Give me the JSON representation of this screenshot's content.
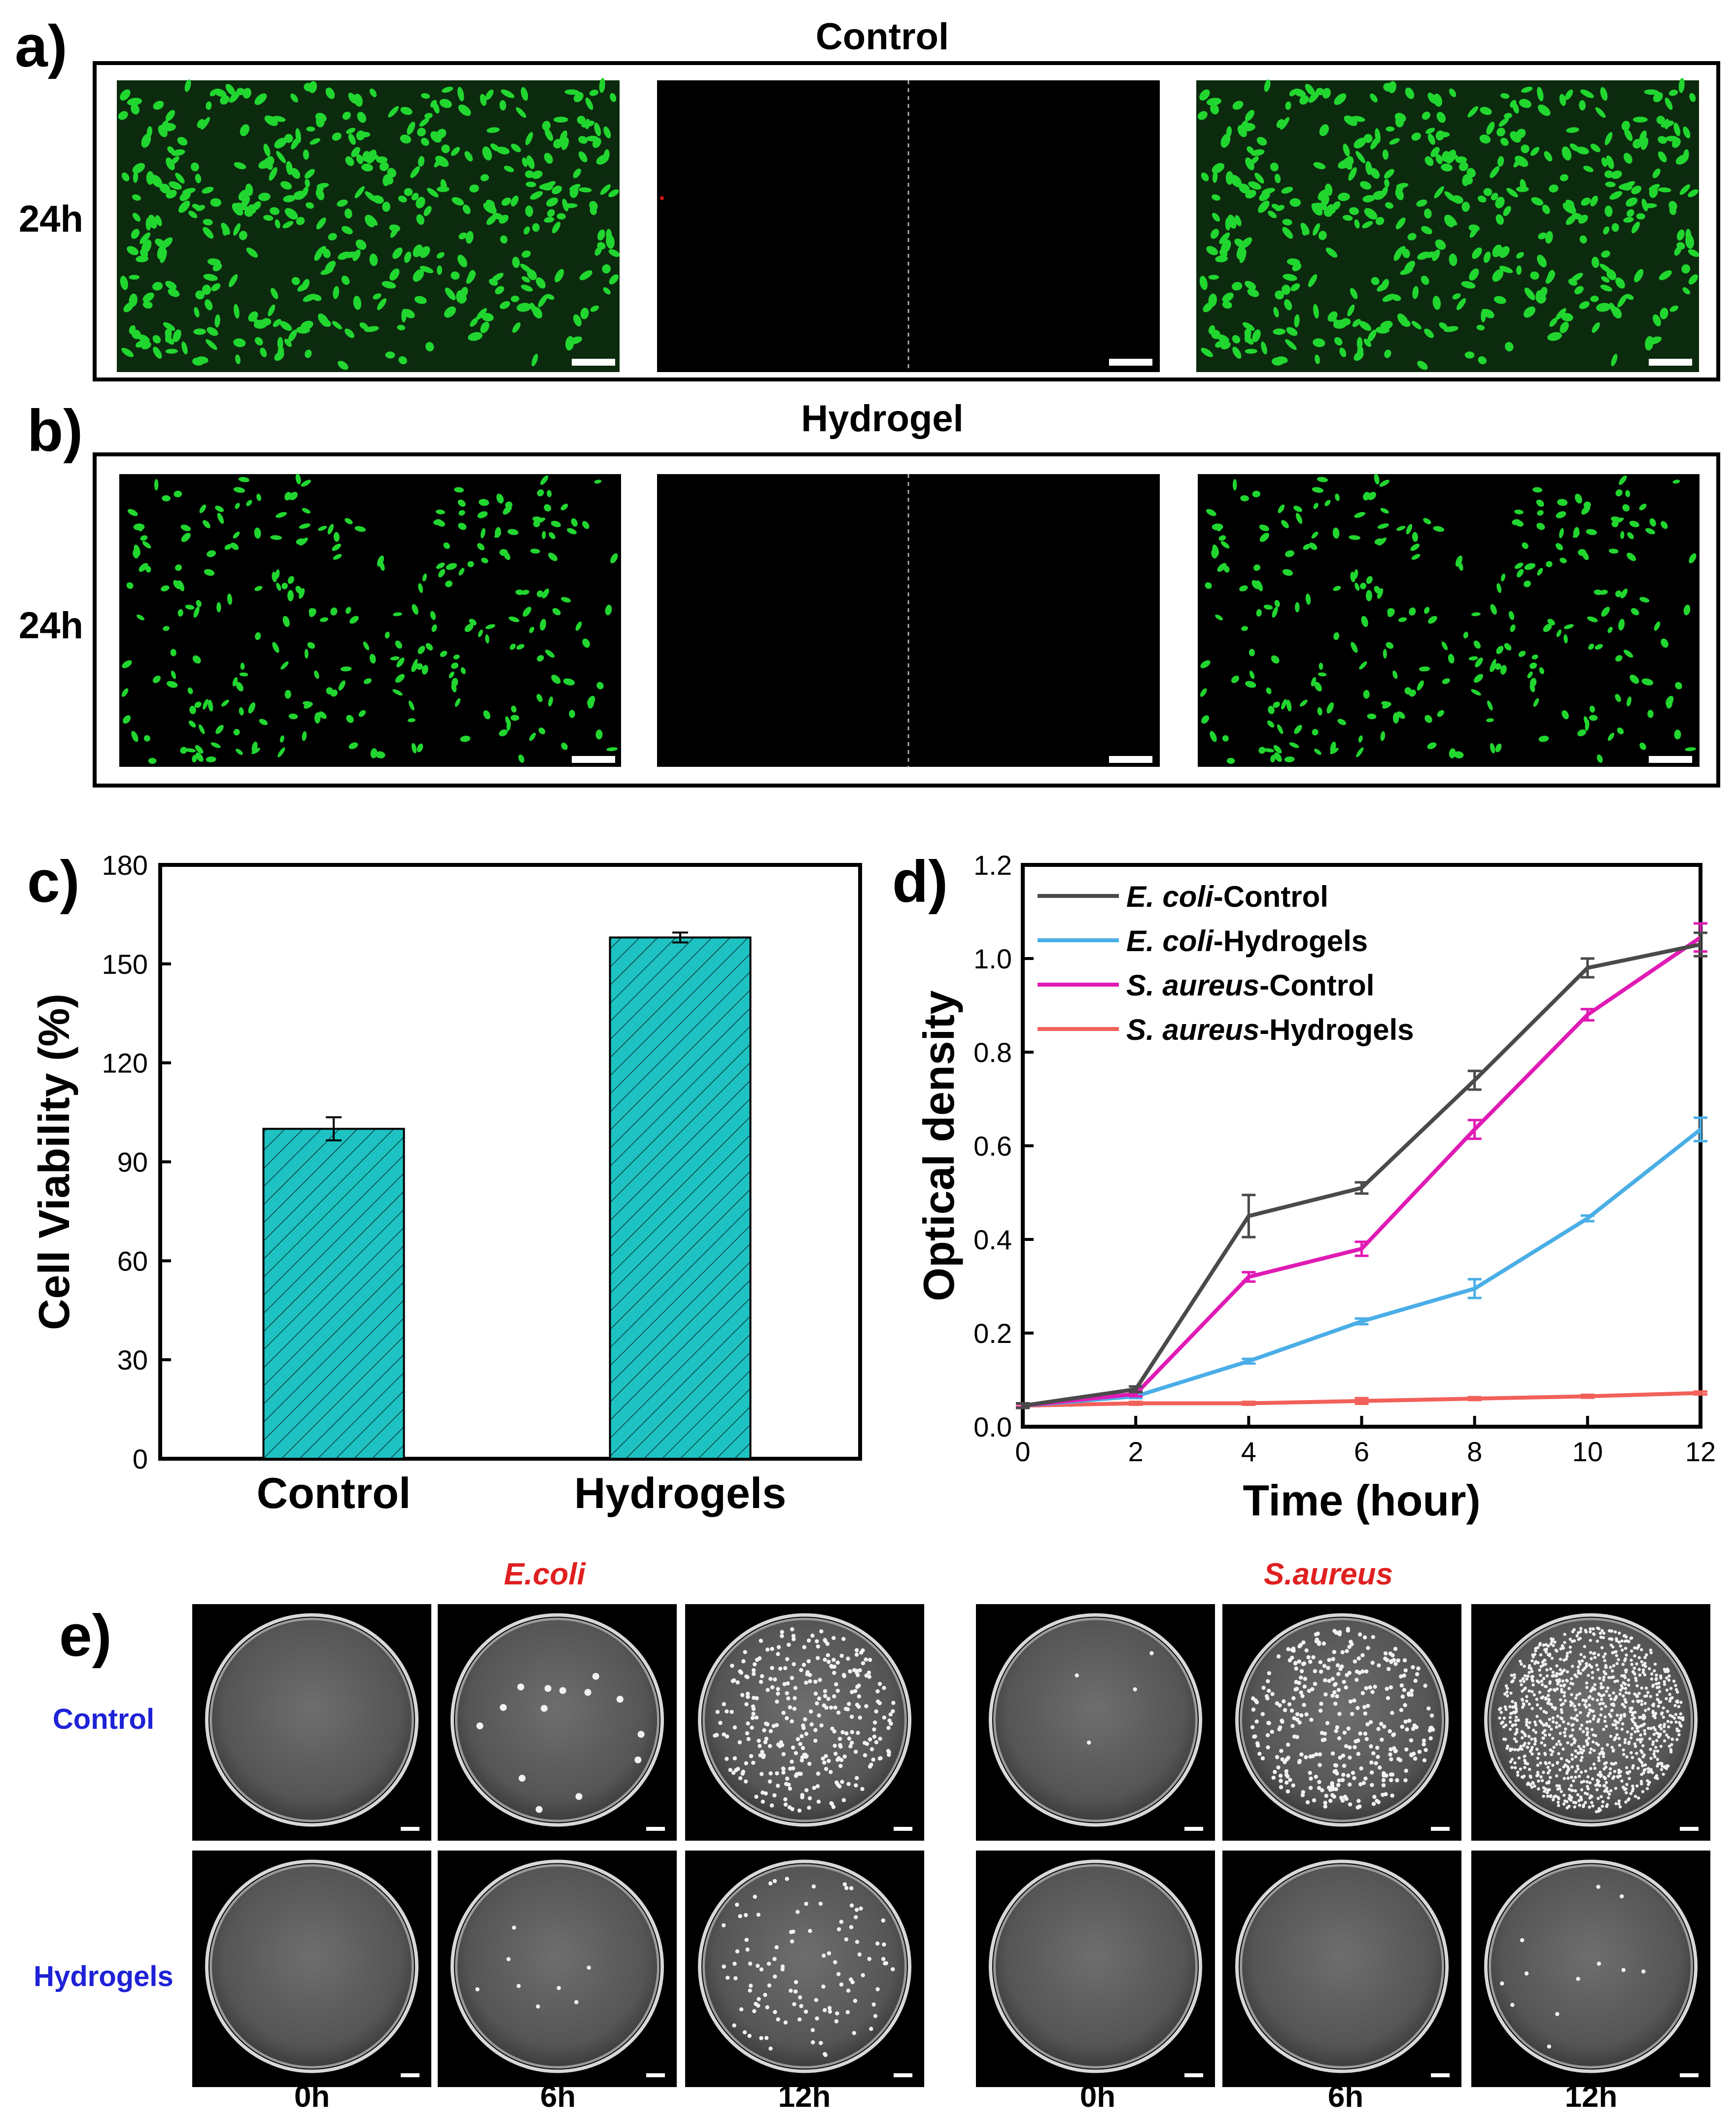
{
  "panel_labels": {
    "a": "a)",
    "b": "b)",
    "c": "c)",
    "d": "d)",
    "e": "e)"
  },
  "panel_a": {
    "title": "Control",
    "row_label": "24h"
  },
  "panel_b": {
    "title": "Hydrogel",
    "row_label": "24h"
  },
  "panel_e": {
    "group_titles": [
      "E.coli",
      "S.aureus"
    ],
    "row_labels": [
      "Control",
      "Hydrogels"
    ],
    "time_labels": [
      "0h",
      "6h",
      "12h"
    ],
    "title_color": "#e02020",
    "row_label_color": "#1e22d6"
  },
  "colors": {
    "bar_fill": "#1fc2c2",
    "ecoli_control": "#4a4a4a",
    "ecoli_hydrogels": "#4aaee6",
    "saureus_control": "#e01ab4",
    "saureus_hydrogels": "#f2605a",
    "cell_green": "#22d630"
  },
  "chart_data": [
    {
      "type": "bar",
      "categories": [
        "Control",
        "Hydrogels"
      ],
      "values": [
        100,
        158
      ],
      "errors": [
        3.5,
        1.5
      ],
      "ylabel": "Cell Viability (%)",
      "ylim": [
        0,
        180
      ],
      "yticks": [
        "0",
        "30",
        "60",
        "90",
        "120",
        "150",
        "180"
      ],
      "pattern": "diagonal-hatch"
    },
    {
      "type": "line",
      "x": [
        0,
        2,
        4,
        6,
        8,
        10,
        12
      ],
      "xlabel": "Time (hour)",
      "ylabel": "Optical density",
      "xlim": [
        0,
        12
      ],
      "ylim": [
        0,
        1.2
      ],
      "xticks": [
        "0",
        "2",
        "4",
        "6",
        "8",
        "10",
        "12"
      ],
      "yticks": [
        "0.0",
        "0.2",
        "0.4",
        "0.6",
        "0.8",
        "1.0",
        "1.2"
      ],
      "legend": "top-left",
      "series": [
        {
          "italic": "E. coli",
          "name": "-Control",
          "values": [
            0.045,
            0.08,
            0.45,
            0.51,
            0.74,
            0.98,
            1.03
          ],
          "errors": [
            0.005,
            0.006,
            0.045,
            0.012,
            0.02,
            0.02,
            0.025
          ]
        },
        {
          "italic": "E. coli",
          "name": "-Hydrogels",
          "values": [
            0.045,
            0.065,
            0.14,
            0.225,
            0.295,
            0.445,
            0.635
          ],
          "errors": [
            0.004,
            0.004,
            0.005,
            0.006,
            0.02,
            0.006,
            0.025
          ]
        },
        {
          "italic": "S. aureus",
          "name": "-Control",
          "values": [
            0.045,
            0.07,
            0.32,
            0.38,
            0.635,
            0.88,
            1.045
          ],
          "errors": [
            0.004,
            0.005,
            0.01,
            0.015,
            0.02,
            0.012,
            0.03
          ]
        },
        {
          "italic": "S. aureus",
          "name": "-Hydrogels",
          "values": [
            0.045,
            0.05,
            0.05,
            0.055,
            0.06,
            0.065,
            0.072
          ],
          "errors": [
            0.003,
            0.003,
            0.003,
            0.006,
            0.003,
            0.003,
            0.003
          ]
        }
      ]
    }
  ]
}
